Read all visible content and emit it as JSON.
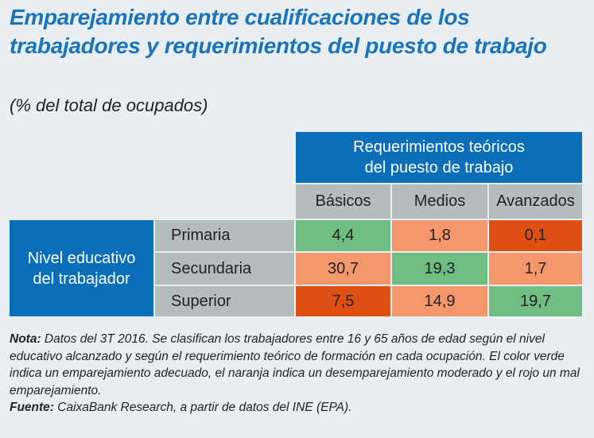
{
  "title": "Emparejamiento entre cualificaciones de los trabajadores y requerimientos del puesto de trabajo",
  "subtitle": "(% del total de ocupados)",
  "colors": {
    "green": "#70bd84",
    "orange": "#f4976b",
    "red": "#e04f12",
    "blue": "#0a6fb8",
    "grey": "#b4bcc0"
  },
  "chart_data": {
    "type": "table",
    "column_group": "Requerimientos teóricos del puesto de trabajo",
    "row_group": "Nivel educativo del trabajador",
    "columns": [
      "Básicos",
      "Medios",
      "Avanzados"
    ],
    "rows": [
      {
        "label": "Primaria",
        "values": [
          "4,4",
          "1,8",
          "0,1"
        ],
        "status": [
          "green",
          "orange",
          "red"
        ]
      },
      {
        "label": "Secundaria",
        "values": [
          "30,7",
          "19,3",
          "1,7"
        ],
        "status": [
          "orange",
          "green",
          "orange"
        ]
      },
      {
        "label": "Superior",
        "values": [
          "7,5",
          "14,9",
          "19,7"
        ],
        "status": [
          "red",
          "orange",
          "green"
        ]
      }
    ]
  },
  "notes": {
    "nota_label": "Nota:",
    "nota_text": " Datos del 3T 2016. Se clasifican los trabajadores entre 16 y 65 años de edad según el nivel educativo alcanzado y según el requerimiento teórico de formación en cada ocupación. El color verde indica un emparejamiento adecuado, el naranja indica un desemparejamiento moderado y el rojo un mal emparejamiento.",
    "fuente_label": "Fuente:",
    "fuente_text": " CaixaBank Research, a partir de datos del INE (EPA)."
  }
}
